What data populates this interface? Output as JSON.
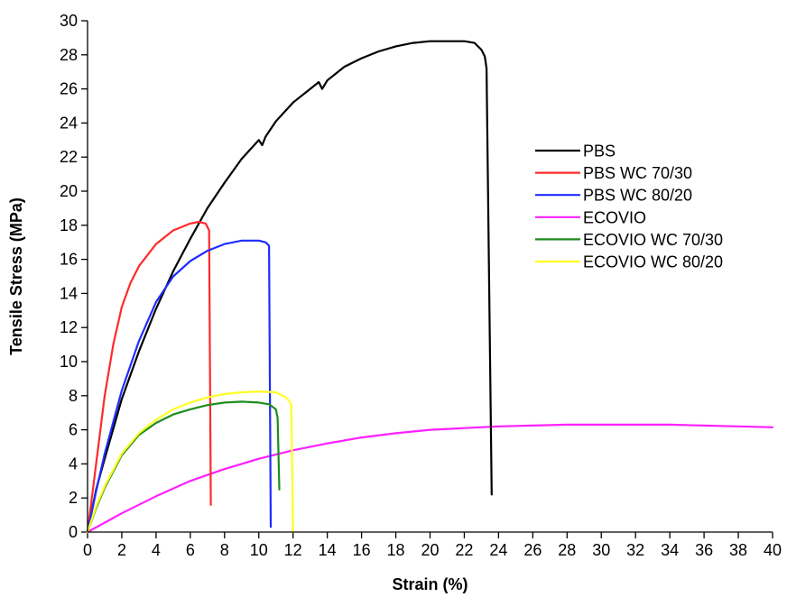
{
  "chart_data": {
    "type": "line",
    "title": "",
    "xlabel": "Strain (%)",
    "ylabel": "Tensile Stress (MPa)",
    "xlim": [
      0,
      40
    ],
    "ylim": [
      0,
      30
    ],
    "xticks": [
      0,
      2,
      4,
      6,
      8,
      10,
      12,
      14,
      16,
      18,
      20,
      22,
      24,
      26,
      28,
      30,
      32,
      34,
      36,
      38,
      40
    ],
    "yticks": [
      0,
      2,
      4,
      6,
      8,
      10,
      12,
      14,
      16,
      18,
      20,
      22,
      24,
      26,
      28,
      30
    ],
    "grid": false,
    "legend": "right",
    "series": [
      {
        "name": "PBS",
        "color": "#000000",
        "x": [
          0,
          0.5,
          1,
          2,
          3,
          4,
          5,
          6,
          7,
          8,
          9,
          10,
          10.2,
          10.4,
          11,
          12,
          13,
          13.5,
          13.7,
          14,
          15,
          16,
          17,
          18,
          19,
          20,
          21,
          22,
          22.6,
          23,
          23.2,
          23.3,
          23.6
        ],
        "y": [
          0,
          2.5,
          4.3,
          7.8,
          10.6,
          13.1,
          15.3,
          17.2,
          19,
          20.5,
          21.9,
          23,
          22.7,
          23.2,
          24.1,
          25.2,
          26,
          26.4,
          26,
          26.5,
          27.3,
          27.8,
          28.2,
          28.5,
          28.7,
          28.8,
          28.8,
          28.8,
          28.7,
          28.3,
          27.9,
          27.2,
          2.2
        ]
      },
      {
        "name": "PBS WC 70/30",
        "color": "#ff2a2a",
        "x": [
          0,
          0.5,
          1,
          1.5,
          2,
          2.5,
          3,
          4,
          5,
          6,
          6.5,
          6.9,
          7.1,
          7.2
        ],
        "y": [
          0,
          4,
          8,
          11,
          13.2,
          14.6,
          15.6,
          16.9,
          17.7,
          18.1,
          18.2,
          18.1,
          17.7,
          1.6
        ]
      },
      {
        "name": "PBS WC 80/20",
        "color": "#1f2cff",
        "x": [
          0,
          0.5,
          1,
          2,
          3,
          4,
          5,
          6,
          7,
          8,
          9,
          10,
          10.4,
          10.6,
          10.7
        ],
        "y": [
          0,
          2.4,
          4.6,
          8.3,
          11.2,
          13.5,
          15,
          15.9,
          16.5,
          16.9,
          17.1,
          17.1,
          17,
          16.8,
          0.3
        ]
      },
      {
        "name": "ECOVIO",
        "color": "#ff1fff",
        "x": [
          0,
          2,
          4,
          6,
          8,
          10,
          12,
          14,
          16,
          18,
          20,
          22,
          24,
          26,
          28,
          30,
          32,
          34,
          36,
          38,
          40
        ],
        "y": [
          0,
          1.1,
          2.1,
          3,
          3.7,
          4.3,
          4.8,
          5.2,
          5.55,
          5.8,
          6,
          6.1,
          6.2,
          6.25,
          6.3,
          6.3,
          6.3,
          6.3,
          6.25,
          6.2,
          6.15
        ]
      },
      {
        "name": "ECOVIO WC 70/30",
        "color": "#1e8c1e",
        "x": [
          0,
          0.5,
          1,
          2,
          3,
          4,
          5,
          6,
          7,
          8,
          9,
          10,
          10.6,
          11,
          11.1,
          11.2
        ],
        "y": [
          0,
          1.4,
          2.6,
          4.5,
          5.7,
          6.4,
          6.9,
          7.2,
          7.45,
          7.6,
          7.65,
          7.6,
          7.5,
          7.2,
          6.7,
          2.5
        ]
      },
      {
        "name": "ECOVIO WC 80/20",
        "color": "#ffff22",
        "x": [
          0,
          0.5,
          1,
          2,
          3,
          4,
          5,
          6,
          7,
          8,
          9,
          10,
          11,
          11.6,
          11.9,
          12
        ],
        "y": [
          0,
          1.5,
          2.7,
          4.6,
          5.8,
          6.6,
          7.2,
          7.6,
          7.9,
          8.1,
          8.2,
          8.25,
          8.2,
          7.9,
          7.5,
          0
        ]
      }
    ]
  }
}
